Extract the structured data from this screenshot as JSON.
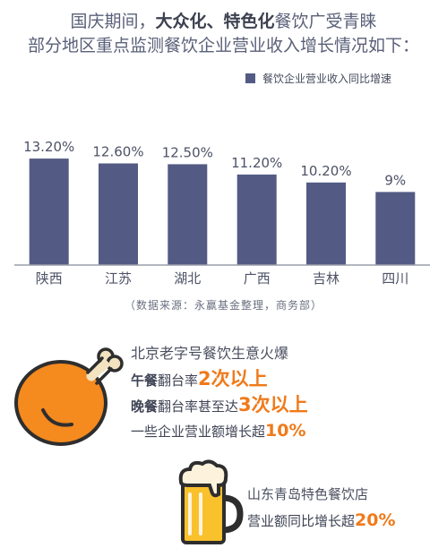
{
  "headline": {
    "line1_prefix": "国庆期间，",
    "line1_bold": "大众化、特色化",
    "line1_suffix": "餐饮广受青睐",
    "line2": "部分地区重点监测餐饮企业营业收入增长情况如下："
  },
  "chart_data": {
    "type": "bar",
    "categories": [
      "陕西",
      "江苏",
      "湖北",
      "广西",
      "吉林",
      "四川"
    ],
    "series": [
      {
        "name": "餐饮企业营业收入同比增速",
        "values": [
          13.2,
          12.6,
          12.5,
          11.2,
          10.2,
          9.0
        ]
      }
    ],
    "data_labels": [
      "13.20%",
      "12.60%",
      "12.50%",
      "11.20%",
      "10.20%",
      "9%"
    ],
    "legend_position": "top-right",
    "grid": false,
    "bar_color": "#535b84"
  },
  "source": "（数据来源：永赢基金整理，商务部）",
  "block1": {
    "title": "北京老字号餐饮生意火爆",
    "l2_bold": "午餐",
    "l2_text": "翻台率",
    "l2_hl": "2次以上",
    "l3_bold": "晚餐",
    "l3_text": "翻台率甚至达",
    "l3_hl": "3次以上",
    "l4_text": "一些企业营业额增长超",
    "l4_hl": "10%"
  },
  "block2": {
    "title": "山东青岛特色餐饮店",
    "l2_text": "营业额同比增长超",
    "l2_hl": "20%"
  },
  "colors": {
    "accent": "#f07a1a",
    "text": "#3f4455",
    "bar": "#535b84"
  },
  "icons": [
    "chicken-drumstick-icon",
    "beer-mug-icon"
  ]
}
